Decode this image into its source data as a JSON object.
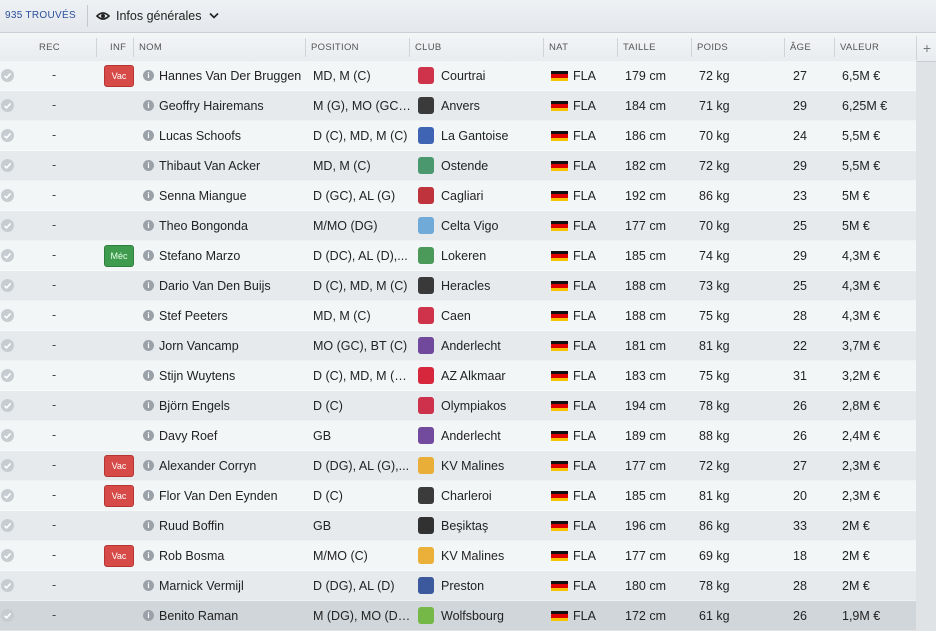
{
  "toolbar": {
    "found_count": "935 TROUVÉS",
    "view_label": "Infos générales",
    "view_icon": "eye-icon",
    "dropdown_icon": "chevron-down-icon"
  },
  "columns": {
    "rec": "REC",
    "inf": "INF",
    "nom": "NOM",
    "position": "POSITION",
    "club": "CLUB",
    "nat": "NAT",
    "taille": "TAILLE",
    "poids": "POIDS",
    "age": "ÂGE",
    "valeur": "VALEUR",
    "add_column": "+"
  },
  "colors": {
    "badge_vac": "#d64a47",
    "badge_mec": "#3f9c4f",
    "link_blue": "#2a4f9a"
  },
  "rows": [
    {
      "rec": "-",
      "inf": "Vac",
      "name": "Hannes Van Der Bruggen",
      "position": "MD, M (C)",
      "club": "Courtrai",
      "nat": "FLA",
      "taille": "179 cm",
      "poids": "72 kg",
      "age": "27",
      "valeur": "6,5M €"
    },
    {
      "rec": "-",
      "inf": "",
      "name": "Geoffry Hairemans",
      "position": "M (G), MO (GC),...",
      "club": "Anvers",
      "nat": "FLA",
      "taille": "184 cm",
      "poids": "71 kg",
      "age": "29",
      "valeur": "6,25M €"
    },
    {
      "rec": "-",
      "inf": "",
      "name": "Lucas Schoofs",
      "position": "D (C), MD, M (C)",
      "club": "La Gantoise",
      "nat": "FLA",
      "taille": "186 cm",
      "poids": "70 kg",
      "age": "24",
      "valeur": "5,5M €"
    },
    {
      "rec": "-",
      "inf": "",
      "name": "Thibaut Van Acker",
      "position": "MD, M (C)",
      "club": "Ostende",
      "nat": "FLA",
      "taille": "182 cm",
      "poids": "72 kg",
      "age": "29",
      "valeur": "5,5M €"
    },
    {
      "rec": "-",
      "inf": "",
      "name": "Senna Miangue",
      "position": "D (GC), AL (G)",
      "club": "Cagliari",
      "nat": "FLA",
      "taille": "192 cm",
      "poids": "86 kg",
      "age": "23",
      "valeur": "5M €"
    },
    {
      "rec": "-",
      "inf": "",
      "name": "Theo Bongonda",
      "position": "M/MO (DG)",
      "club": "Celta Vigo",
      "nat": "FLA",
      "taille": "177 cm",
      "poids": "70 kg",
      "age": "25",
      "valeur": "5M €"
    },
    {
      "rec": "-",
      "inf": "Méc",
      "name": "Stefano Marzo",
      "position": "D (DC), AL (D),...",
      "club": "Lokeren",
      "nat": "FLA",
      "taille": "185 cm",
      "poids": "74 kg",
      "age": "29",
      "valeur": "4,3M €"
    },
    {
      "rec": "-",
      "inf": "",
      "name": "Dario Van Den Buijs",
      "position": "D (C), MD, M (C)",
      "club": "Heracles",
      "nat": "FLA",
      "taille": "188 cm",
      "poids": "73 kg",
      "age": "25",
      "valeur": "4,3M €"
    },
    {
      "rec": "-",
      "inf": "",
      "name": "Stef Peeters",
      "position": "MD, M (C)",
      "club": "Caen",
      "nat": "FLA",
      "taille": "188 cm",
      "poids": "75 kg",
      "age": "28",
      "valeur": "4,3M €"
    },
    {
      "rec": "-",
      "inf": "",
      "name": "Jorn Vancamp",
      "position": "MO (GC), BT (C)",
      "club": "Anderlecht",
      "nat": "FLA",
      "taille": "181 cm",
      "poids": "81 kg",
      "age": "22",
      "valeur": "3,7M €"
    },
    {
      "rec": "-",
      "inf": "",
      "name": "Stijn Wuytens",
      "position": "D (C), MD, M (C),...",
      "club": "AZ Alkmaar",
      "nat": "FLA",
      "taille": "183 cm",
      "poids": "75 kg",
      "age": "31",
      "valeur": "3,2M €"
    },
    {
      "rec": "-",
      "inf": "",
      "name": "Björn Engels",
      "position": "D (C)",
      "club": "Olympiakos",
      "nat": "FLA",
      "taille": "194 cm",
      "poids": "78 kg",
      "age": "26",
      "valeur": "2,8M €"
    },
    {
      "rec": "-",
      "inf": "",
      "name": "Davy Roef",
      "position": "GB",
      "club": "Anderlecht",
      "nat": "FLA",
      "taille": "189 cm",
      "poids": "88 kg",
      "age": "26",
      "valeur": "2,4M €"
    },
    {
      "rec": "-",
      "inf": "Vac",
      "name": "Alexander Corryn",
      "position": "D (DG), AL (G),...",
      "club": "KV Malines",
      "nat": "FLA",
      "taille": "177 cm",
      "poids": "72 kg",
      "age": "27",
      "valeur": "2,3M €"
    },
    {
      "rec": "-",
      "inf": "Vac",
      "name": "Flor Van Den Eynden",
      "position": "D (C)",
      "club": "Charleroi",
      "nat": "FLA",
      "taille": "185 cm",
      "poids": "81 kg",
      "age": "20",
      "valeur": "2,3M €"
    },
    {
      "rec": "-",
      "inf": "",
      "name": "Ruud Boffin",
      "position": "GB",
      "club": "Beşiktaş",
      "nat": "FLA",
      "taille": "196 cm",
      "poids": "86 kg",
      "age": "33",
      "valeur": "2M €"
    },
    {
      "rec": "-",
      "inf": "Vac",
      "name": "Rob Bosma",
      "position": "M/MO (C)",
      "club": "KV Malines",
      "nat": "FLA",
      "taille": "177 cm",
      "poids": "69 kg",
      "age": "18",
      "valeur": "2M €"
    },
    {
      "rec": "-",
      "inf": "",
      "name": "Marnick Vermijl",
      "position": "D (DG), AL (D)",
      "club": "Preston",
      "nat": "FLA",
      "taille": "180 cm",
      "poids": "78 kg",
      "age": "28",
      "valeur": "2M €"
    },
    {
      "rec": "-",
      "inf": "",
      "name": "Benito Raman",
      "position": "M (DG), MO (DG...",
      "club": "Wolfsbourg",
      "nat": "FLA",
      "taille": "172 cm",
      "poids": "61 kg",
      "age": "26",
      "valeur": "1,9M €"
    }
  ]
}
